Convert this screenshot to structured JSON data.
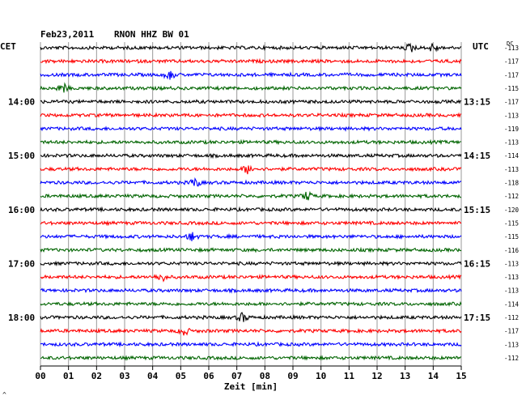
{
  "header": {
    "date": "Feb23,2011",
    "station": "RNON HHZ BW 01"
  },
  "labels": {
    "left_timezone": "CET",
    "right_timezone": "UTC",
    "dc_header": "DC",
    "x_axis_title": "Zeit [min]",
    "corner_mark": "^"
  },
  "chart_data": {
    "type": "line",
    "title": "Feb23,2011   RNON HHZ BW 01",
    "xlabel": "Zeit [min]",
    "ylabel": "",
    "x_ticks": [
      "00",
      "01",
      "02",
      "03",
      "04",
      "05",
      "06",
      "07",
      "08",
      "09",
      "10",
      "11",
      "12",
      "13",
      "14",
      "15"
    ],
    "xlim": [
      0,
      15
    ],
    "trace_count": 24,
    "trace_colors": [
      "#000000",
      "#ff0000",
      "#0000ff",
      "#006400"
    ],
    "left_hour_labels": [
      {
        "trace": 4,
        "label": "14:00"
      },
      {
        "trace": 8,
        "label": "15:00"
      },
      {
        "trace": 12,
        "label": "16:00"
      },
      {
        "trace": 16,
        "label": "17:00"
      },
      {
        "trace": 20,
        "label": "18:00"
      }
    ],
    "right_hour_labels": [
      {
        "trace": 4,
        "label": "13:15"
      },
      {
        "trace": 8,
        "label": "14:15"
      },
      {
        "trace": 12,
        "label": "15:15"
      },
      {
        "trace": 16,
        "label": "16:15"
      },
      {
        "trace": 20,
        "label": "17:15"
      }
    ],
    "dc_offsets": [
      "-113",
      "-117",
      "-117",
      "-115",
      "-117",
      "-113",
      "-119",
      "-113",
      "-114",
      "-113",
      "-118",
      "-112",
      "-120",
      "-115",
      "-115",
      "-116",
      "-113",
      "-113",
      "-113",
      "-114",
      "-112",
      "-117",
      "-113",
      "-112"
    ],
    "events": [
      {
        "trace": 0,
        "minute": 13.2
      },
      {
        "trace": 0,
        "minute": 14.0
      },
      {
        "trace": 2,
        "minute": 4.6
      },
      {
        "trace": 3,
        "minute": 0.8
      },
      {
        "trace": 9,
        "minute": 7.4
      },
      {
        "trace": 10,
        "minute": 5.5
      },
      {
        "trace": 11,
        "minute": 9.5
      },
      {
        "trace": 14,
        "minute": 5.4
      },
      {
        "trace": 17,
        "minute": 4.3
      },
      {
        "trace": 20,
        "minute": 7.2
      },
      {
        "trace": 21,
        "minute": 5.1
      }
    ]
  }
}
